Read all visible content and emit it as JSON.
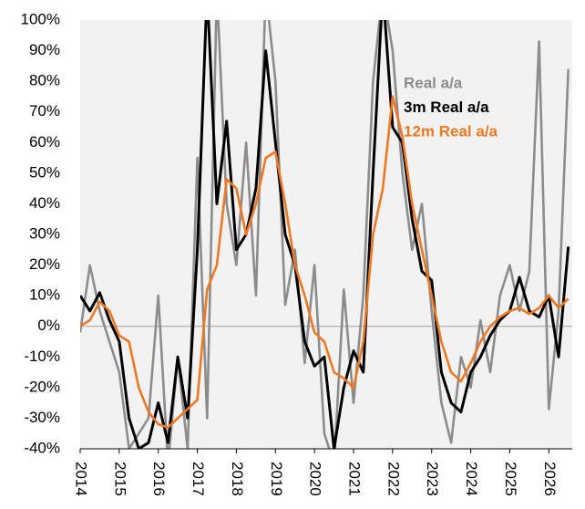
{
  "chart_data": {
    "type": "line",
    "x": [
      2014,
      2014.25,
      2014.5,
      2014.75,
      2015,
      2015.25,
      2015.5,
      2015.75,
      2016,
      2016.25,
      2016.5,
      2016.75,
      2017,
      2017.25,
      2017.5,
      2017.75,
      2018,
      2018.25,
      2018.5,
      2018.75,
      2019,
      2019.25,
      2019.5,
      2019.75,
      2020,
      2020.25,
      2020.5,
      2020.75,
      2021,
      2021.25,
      2021.5,
      2021.75,
      2022,
      2022.25,
      2022.5,
      2022.75,
      2023,
      2023.25,
      2023.5,
      2023.75,
      2024,
      2024.25,
      2024.5,
      2024.75,
      2025,
      2025.25,
      2025.5,
      2025.75,
      2026,
      2026.25,
      2026.5
    ],
    "series": [
      {
        "name": "Real a/a",
        "color": "#8c8c8c",
        "values": [
          -2,
          20,
          5,
          -5,
          -15,
          -40,
          -35,
          -30,
          10,
          -45,
          -10,
          -40,
          55,
          -30,
          110,
          40,
          20,
          60,
          10,
          110,
          80,
          7,
          25,
          -12,
          20,
          -35,
          -45,
          12,
          -25,
          10,
          80,
          110,
          90,
          50,
          25,
          40,
          5,
          -25,
          -38,
          -10,
          -20,
          2,
          -15,
          10,
          20,
          5,
          18,
          93,
          -27,
          5,
          84
        ]
      },
      {
        "name": "3m Real a/a",
        "color": "#000000",
        "values": [
          10,
          5,
          11,
          2,
          -5,
          -30,
          -40,
          -38,
          -25,
          -38,
          -10,
          -30,
          25,
          110,
          40,
          67,
          25,
          30,
          45,
          90,
          60,
          30,
          20,
          -5,
          -13,
          -10,
          -40,
          -20,
          -8,
          -15,
          50,
          110,
          65,
          60,
          35,
          18,
          15,
          -15,
          -25,
          -28,
          -15,
          -10,
          -3,
          2,
          5,
          16,
          5,
          3,
          10,
          -10,
          26
        ]
      },
      {
        "name": "12m Real a/a",
        "color": "#f07820",
        "values": [
          0,
          2,
          8,
          5,
          -3,
          -5,
          -20,
          -28,
          -32,
          -33,
          -30,
          -27,
          -24,
          12,
          20,
          48,
          45,
          30,
          40,
          55,
          57,
          40,
          20,
          10,
          -2,
          -5,
          -15,
          -17,
          -20,
          -5,
          30,
          45,
          75,
          62,
          40,
          25,
          10,
          -5,
          -15,
          -18,
          -12,
          -5,
          0,
          3,
          5,
          6,
          4,
          6,
          10,
          6,
          9
        ]
      }
    ],
    "xlim": [
      2014,
      2026.6
    ],
    "xticks": [
      2014,
      2015,
      2016,
      2017,
      2018,
      2019,
      2020,
      2021,
      2022,
      2023,
      2024,
      2025,
      2026
    ],
    "ylim": [
      -40,
      100
    ],
    "yticks": [
      {
        "value": -40,
        "label": "-40%"
      },
      {
        "value": -30,
        "label": "-30%"
      },
      {
        "value": -20,
        "label": "-20%"
      },
      {
        "value": -10,
        "label": "-10%"
      },
      {
        "value": 0,
        "label": "0%"
      },
      {
        "value": 10,
        "label": "10%"
      },
      {
        "value": 20,
        "label": "20%"
      },
      {
        "value": 30,
        "label": "30%"
      },
      {
        "value": 40,
        "label": "40%"
      },
      {
        "value": 50,
        "label": "50%"
      },
      {
        "value": 60,
        "label": "60%"
      },
      {
        "value": 70,
        "label": "70%"
      },
      {
        "value": 80,
        "label": "80%"
      },
      {
        "value": 90,
        "label": "90%"
      },
      {
        "value": 100,
        "label": "100%"
      }
    ],
    "legend": "upper right",
    "background": "#f2f2f2"
  }
}
